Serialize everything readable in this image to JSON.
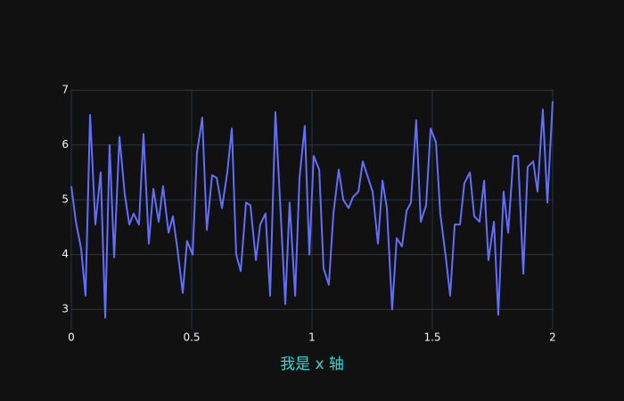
{
  "chart_data": {
    "type": "line",
    "xlabel": "我是 x 轴",
    "xlabel_color": "#2bd9d9",
    "background": "#111111",
    "grid": true,
    "grid_color": "#283442",
    "text_color": "#f2f5fa",
    "xlim": [
      0,
      2
    ],
    "xticks": [
      0,
      0.5,
      1,
      1.5,
      2
    ],
    "ylim": [
      2.63,
      7.02
    ],
    "yticks": [
      3,
      4,
      5,
      6,
      7
    ],
    "x": [
      0,
      0.019,
      0.041,
      0.059,
      0.078,
      0.1,
      0.122,
      0.141,
      0.159,
      0.178,
      0.2,
      0.222,
      0.241,
      0.259,
      0.281,
      0.3,
      0.322,
      0.341,
      0.363,
      0.381,
      0.404,
      0.422,
      0.441,
      0.463,
      0.481,
      0.504,
      0.522,
      0.544,
      0.563,
      0.585,
      0.604,
      0.626,
      0.648,
      0.667,
      0.685,
      0.704,
      0.726,
      0.744,
      0.767,
      0.785,
      0.807,
      0.826,
      0.848,
      0.867,
      0.889,
      0.907,
      0.93,
      0.948,
      0.97,
      0.989,
      1.007,
      1.03,
      1.048,
      1.07,
      1.089,
      1.111,
      1.13,
      1.152,
      1.17,
      1.193,
      1.211,
      1.233,
      1.252,
      1.274,
      1.293,
      1.311,
      1.333,
      1.352,
      1.374,
      1.393,
      1.411,
      1.433,
      1.452,
      1.474,
      1.493,
      1.515,
      1.533,
      1.556,
      1.574,
      1.593,
      1.615,
      1.633,
      1.656,
      1.674,
      1.696,
      1.715,
      1.733,
      1.756,
      1.774,
      1.796,
      1.815,
      1.837,
      1.856,
      1.878,
      1.896,
      1.919,
      1.937,
      1.959,
      1.978,
      2
    ],
    "series": [
      {
        "color": "#636efa",
        "values": [
          5.25,
          4.6,
          4.1,
          3.25,
          6.55,
          4.55,
          5.5,
          2.85,
          6.0,
          3.95,
          6.15,
          5.1,
          4.55,
          4.75,
          4.55,
          6.2,
          4.2,
          5.2,
          4.6,
          5.25,
          4.4,
          4.7,
          4.1,
          3.3,
          4.25,
          4.0,
          5.85,
          6.5,
          4.45,
          5.45,
          5.4,
          4.85,
          5.5,
          6.3,
          4.0,
          3.7,
          4.95,
          4.9,
          3.9,
          4.55,
          4.75,
          3.25,
          6.6,
          5.0,
          3.1,
          4.95,
          3.25,
          5.4,
          6.35,
          4.0,
          5.8,
          5.55,
          3.75,
          3.45,
          4.75,
          5.55,
          5.0,
          4.85,
          5.05,
          5.15,
          5.7,
          5.4,
          5.15,
          4.2,
          5.35,
          4.85,
          3.0,
          4.3,
          4.15,
          4.8,
          4.95,
          6.45,
          4.6,
          4.9,
          6.3,
          6.05,
          4.75,
          3.95,
          3.25,
          4.55,
          4.55,
          5.3,
          5.5,
          4.7,
          4.6,
          5.35,
          3.9,
          4.6,
          2.9,
          5.15,
          4.4,
          5.8,
          5.8,
          3.65,
          5.6,
          5.7,
          5.15,
          6.65,
          4.95,
          6.8
        ]
      }
    ]
  }
}
